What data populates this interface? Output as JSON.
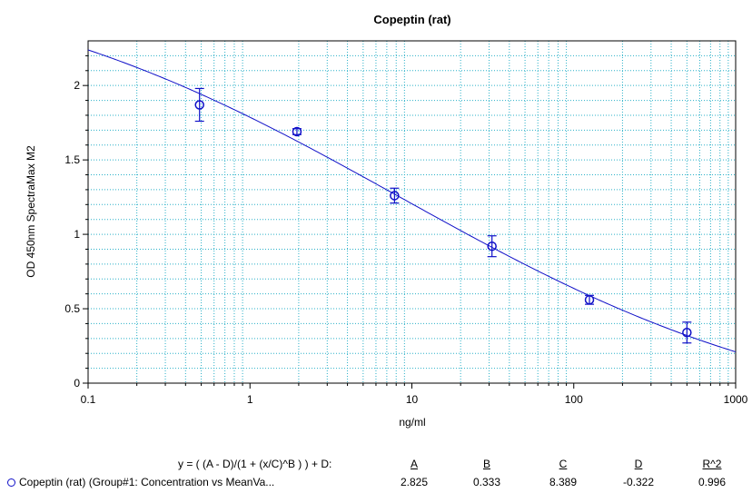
{
  "chart_data": {
    "type": "scatter",
    "title": "Copeptin (rat)",
    "xlabel": "ng/ml",
    "ylabel": "OD 450nm SpectraMax M2",
    "x_scale": "log",
    "xlim": [
      0.1,
      1000
    ],
    "ylim": [
      0,
      2.3
    ],
    "x_ticks": [
      "0.1",
      "1",
      "10",
      "100",
      "1000"
    ],
    "y_ticks": [
      "0",
      "0.5",
      "1",
      "1.5",
      "2"
    ],
    "grid": true,
    "colors": {
      "series": "#1010c8",
      "grid": "#2ab0c8",
      "axis": "#000000"
    },
    "series": [
      {
        "name": "Copeptin (rat) (Group#1: Concentration vs MeanVa...",
        "points": [
          {
            "x": 0.488,
            "y": 1.87,
            "err": 0.11
          },
          {
            "x": 1.95,
            "y": 1.69,
            "err": 0.02
          },
          {
            "x": 7.81,
            "y": 1.26,
            "err": 0.05
          },
          {
            "x": 31.25,
            "y": 0.92,
            "err": 0.07
          },
          {
            "x": 125,
            "y": 0.56,
            "err": 0.03
          },
          {
            "x": 500,
            "y": 0.34,
            "err": 0.07
          }
        ]
      }
    ],
    "fit": {
      "equation": "y = ( (A - D)/(1 + (x/C)^B ) ) + D:",
      "params": [
        {
          "label": "A",
          "value": "2.825"
        },
        {
          "label": "B",
          "value": "0.333"
        },
        {
          "label": "C",
          "value": "8.389"
        },
        {
          "label": "D",
          "value": "-0.322"
        },
        {
          "label": "R^2",
          "value": "0.996"
        }
      ]
    }
  }
}
